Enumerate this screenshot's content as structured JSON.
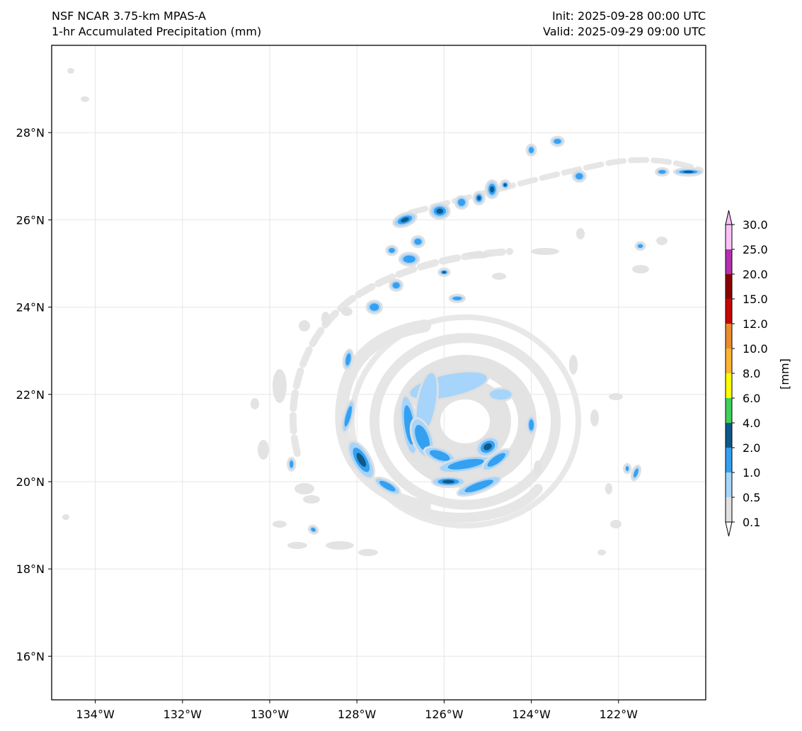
{
  "header": {
    "model": "NSF NCAR 3.75-km MPAS-A",
    "field": "1-hr Accumulated Precipitation (mm)",
    "init": "Init: 2025-09-28 00:00 UTC",
    "valid": "Valid: 2025-09-29 09:00 UTC"
  },
  "map": {
    "lon_range": [
      -135.0,
      -120.0
    ],
    "lat_range": [
      15.0,
      30.0
    ],
    "gridlines": true,
    "lon_ticks": [
      {
        "value": -134,
        "label": "134°W"
      },
      {
        "value": -132,
        "label": "132°W"
      },
      {
        "value": -130,
        "label": "130°W"
      },
      {
        "value": -128,
        "label": "128°W"
      },
      {
        "value": -126,
        "label": "126°W"
      },
      {
        "value": -124,
        "label": "124°W"
      },
      {
        "value": -122,
        "label": "122°W"
      }
    ],
    "lat_ticks": [
      {
        "value": 28,
        "label": "28°N"
      },
      {
        "value": 26,
        "label": "26°N"
      },
      {
        "value": 24,
        "label": "24°N"
      },
      {
        "value": 22,
        "label": "22°N"
      },
      {
        "value": 20,
        "label": "20°N"
      },
      {
        "value": 18,
        "label": "18°N"
      },
      {
        "value": 16,
        "label": "16°N"
      }
    ],
    "storm_center": {
      "lon": -125.6,
      "lat": 21.3
    },
    "rainbands": [
      {
        "lon": -125.9,
        "lat": 22.2,
        "rx_deg": 0.9,
        "ry_deg": 0.25,
        "rot": -12,
        "level": 1
      },
      {
        "lon": -124.7,
        "lat": 22.0,
        "rx_deg": 0.25,
        "ry_deg": 0.12,
        "rot": 0,
        "level": 1
      },
      {
        "lon": -126.4,
        "lat": 21.8,
        "rx_deg": 0.2,
        "ry_deg": 0.7,
        "rot": 10,
        "level": 1
      },
      {
        "lon": -126.8,
        "lat": 21.3,
        "rx_deg": 0.15,
        "ry_deg": 0.65,
        "rot": -8,
        "level": 2
      },
      {
        "lon": -126.5,
        "lat": 21.0,
        "rx_deg": 0.2,
        "ry_deg": 0.45,
        "rot": -20,
        "level": 2
      },
      {
        "lon": -126.1,
        "lat": 20.6,
        "rx_deg": 0.35,
        "ry_deg": 0.14,
        "rot": 20,
        "level": 2
      },
      {
        "lon": -125.5,
        "lat": 20.4,
        "rx_deg": 0.6,
        "ry_deg": 0.14,
        "rot": -10,
        "level": 2
      },
      {
        "lon": -125.0,
        "lat": 20.8,
        "rx_deg": 0.25,
        "ry_deg": 0.18,
        "rot": -30,
        "level": 3
      },
      {
        "lon": -124.8,
        "lat": 20.5,
        "rx_deg": 0.35,
        "ry_deg": 0.12,
        "rot": -35,
        "level": 2
      },
      {
        "lon": -125.9,
        "lat": 20.0,
        "rx_deg": 0.35,
        "ry_deg": 0.1,
        "rot": 0,
        "level": 3
      },
      {
        "lon": -125.2,
        "lat": 19.9,
        "rx_deg": 0.5,
        "ry_deg": 0.12,
        "rot": -20,
        "level": 2
      },
      {
        "lon": -124.0,
        "lat": 21.3,
        "rx_deg": 0.08,
        "ry_deg": 0.18,
        "rot": 0,
        "level": 2
      },
      {
        "lon": -127.9,
        "lat": 20.5,
        "rx_deg": 0.18,
        "ry_deg": 0.45,
        "rot": -30,
        "level": 3
      },
      {
        "lon": -127.3,
        "lat": 19.9,
        "rx_deg": 0.3,
        "ry_deg": 0.1,
        "rot": 30,
        "level": 2
      },
      {
        "lon": -128.2,
        "lat": 21.5,
        "rx_deg": 0.08,
        "ry_deg": 0.35,
        "rot": 15,
        "level": 2
      },
      {
        "lon": -128.2,
        "lat": 22.8,
        "rx_deg": 0.08,
        "ry_deg": 0.2,
        "rot": 10,
        "level": 2
      },
      {
        "lon": -127.6,
        "lat": 24.0,
        "rx_deg": 0.15,
        "ry_deg": 0.12,
        "rot": 0,
        "level": 2
      },
      {
        "lon": -127.1,
        "lat": 24.5,
        "rx_deg": 0.12,
        "ry_deg": 0.1,
        "rot": 0,
        "level": 2
      },
      {
        "lon": -126.8,
        "lat": 25.1,
        "rx_deg": 0.2,
        "ry_deg": 0.12,
        "rot": 0,
        "level": 2
      },
      {
        "lon": -127.2,
        "lat": 25.3,
        "rx_deg": 0.1,
        "ry_deg": 0.08,
        "rot": 0,
        "level": 2
      },
      {
        "lon": -126.6,
        "lat": 25.5,
        "rx_deg": 0.12,
        "ry_deg": 0.1,
        "rot": 0,
        "level": 2
      },
      {
        "lon": -126.0,
        "lat": 24.8,
        "rx_deg": 0.1,
        "ry_deg": 0.06,
        "rot": 0,
        "level": 3
      },
      {
        "lon": -125.7,
        "lat": 24.2,
        "rx_deg": 0.15,
        "ry_deg": 0.06,
        "rot": 0,
        "level": 2
      },
      {
        "lon": -126.9,
        "lat": 26.0,
        "rx_deg": 0.25,
        "ry_deg": 0.12,
        "rot": -20,
        "level": 3
      },
      {
        "lon": -126.1,
        "lat": 26.2,
        "rx_deg": 0.2,
        "ry_deg": 0.15,
        "rot": 0,
        "level": 3
      },
      {
        "lon": -125.6,
        "lat": 26.4,
        "rx_deg": 0.12,
        "ry_deg": 0.12,
        "rot": 0,
        "level": 2
      },
      {
        "lon": -125.2,
        "lat": 26.5,
        "rx_deg": 0.1,
        "ry_deg": 0.12,
        "rot": 0,
        "level": 3
      },
      {
        "lon": -124.9,
        "lat": 26.7,
        "rx_deg": 0.12,
        "ry_deg": 0.18,
        "rot": 0,
        "level": 3
      },
      {
        "lon": -124.6,
        "lat": 26.8,
        "rx_deg": 0.08,
        "ry_deg": 0.08,
        "rot": 0,
        "level": 3
      },
      {
        "lon": -124.0,
        "lat": 27.6,
        "rx_deg": 0.08,
        "ry_deg": 0.1,
        "rot": 0,
        "level": 2
      },
      {
        "lon": -123.4,
        "lat": 27.8,
        "rx_deg": 0.12,
        "ry_deg": 0.08,
        "rot": 0,
        "level": 2
      },
      {
        "lon": -122.9,
        "lat": 27.0,
        "rx_deg": 0.12,
        "ry_deg": 0.1,
        "rot": 0,
        "level": 2
      },
      {
        "lon": -121.0,
        "lat": 27.1,
        "rx_deg": 0.12,
        "ry_deg": 0.06,
        "rot": 0,
        "level": 2
      },
      {
        "lon": -120.4,
        "lat": 27.1,
        "rx_deg": 0.3,
        "ry_deg": 0.06,
        "rot": 0,
        "level": 3
      },
      {
        "lon": -121.6,
        "lat": 20.2,
        "rx_deg": 0.06,
        "ry_deg": 0.15,
        "rot": 20,
        "level": 2
      },
      {
        "lon": -121.8,
        "lat": 20.3,
        "rx_deg": 0.05,
        "ry_deg": 0.08,
        "rot": 0,
        "level": 2
      },
      {
        "lon": -129.5,
        "lat": 20.4,
        "rx_deg": 0.06,
        "ry_deg": 0.12,
        "rot": 0,
        "level": 2
      },
      {
        "lon": -129.0,
        "lat": 18.9,
        "rx_deg": 0.08,
        "ry_deg": 0.06,
        "rot": 30,
        "level": 2
      },
      {
        "lon": -121.5,
        "lat": 25.4,
        "rx_deg": 0.08,
        "ry_deg": 0.06,
        "rot": 0,
        "level": 2
      }
    ]
  },
  "colorbar": {
    "units": "[mm]",
    "levels": [
      "0.1",
      "0.5",
      "1.0",
      "2.0",
      "4.0",
      "6.0",
      "8.0",
      "10.0",
      "12.0",
      "15.0",
      "20.0",
      "25.0",
      "30.0"
    ],
    "colors": [
      "#e0e0e0",
      "#a6d4fb",
      "#35a0f0",
      "#0d5a8a",
      "#3fcf5a",
      "#ffff00",
      "#fab533",
      "#ed8b2f",
      "#c80606",
      "#8c0000",
      "#b231b0",
      "#fac1f8"
    ]
  }
}
